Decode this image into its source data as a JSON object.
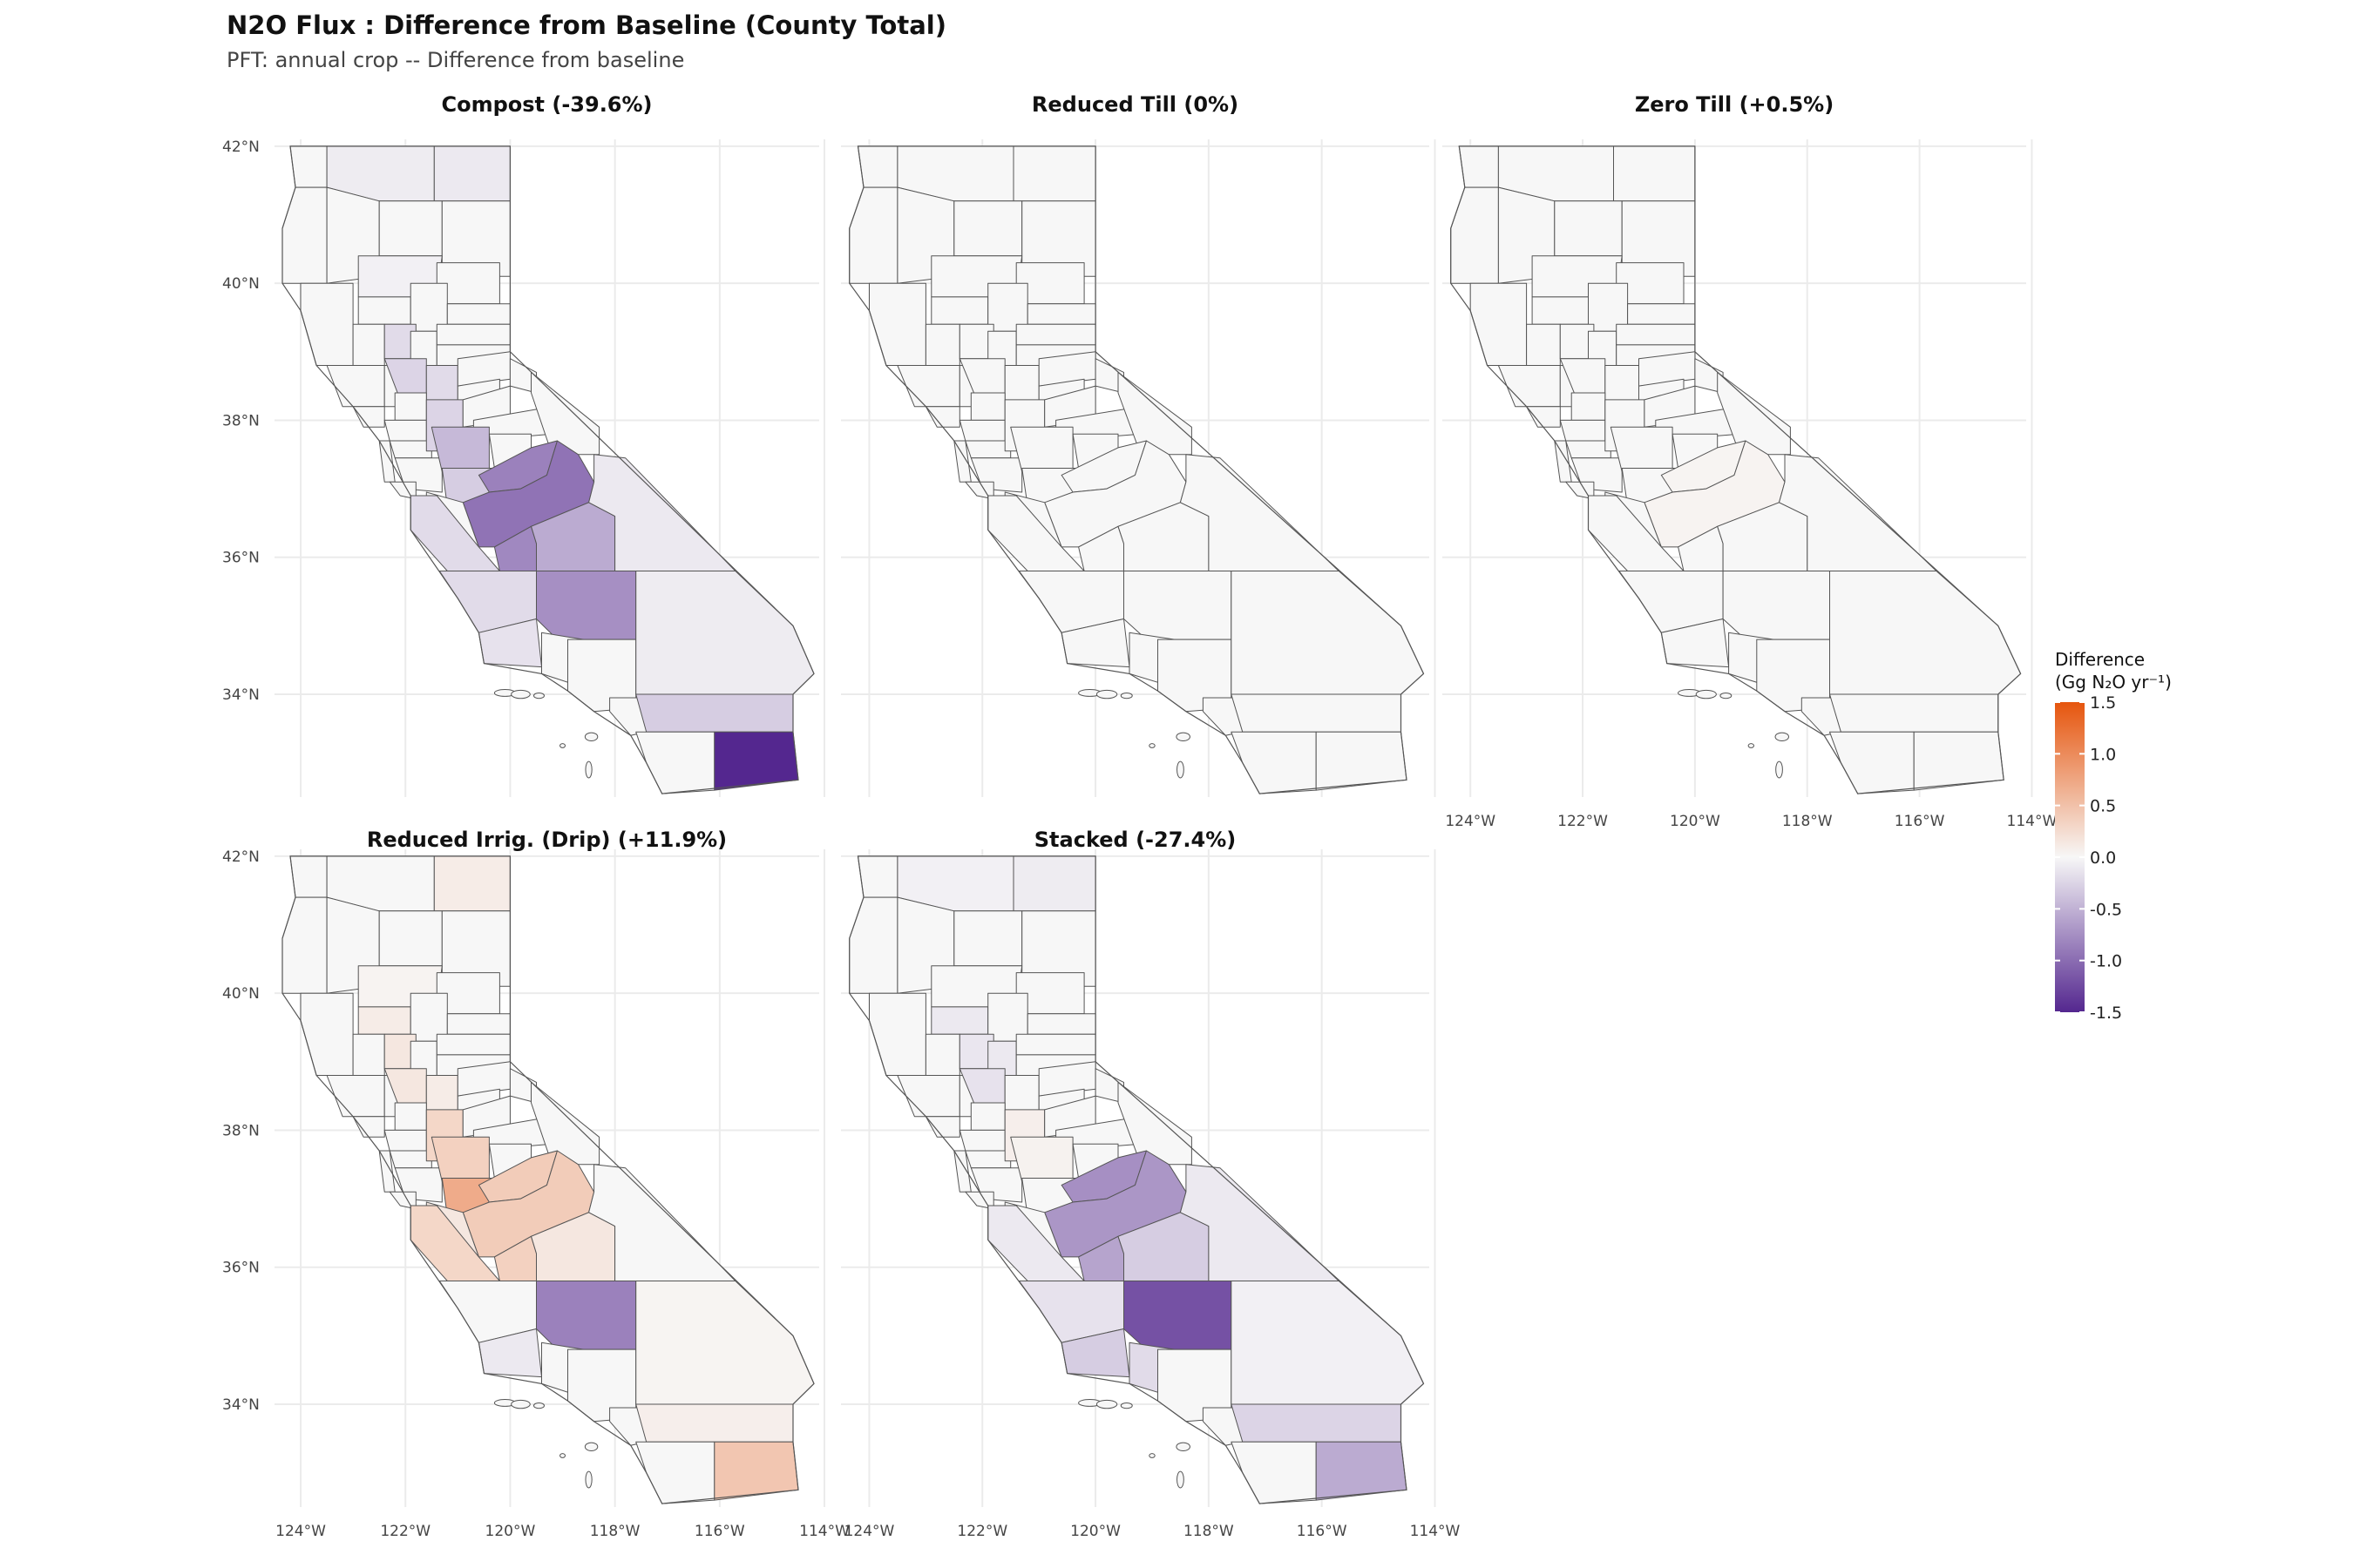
{
  "title": "N2O Flux : Difference from Baseline (County Total)",
  "subtitle": "PFT: annual crop  -- Difference from baseline",
  "chart_data": {
    "type": "choropleth-map",
    "region": "California counties",
    "x_ticks": [
      "124°W",
      "122°W",
      "120°W",
      "118°W",
      "116°W",
      "114°W"
    ],
    "x_tick_values": [
      -124,
      -122,
      -120,
      -118,
      -116,
      -114
    ],
    "y_ticks": [
      "42°N",
      "40°N",
      "38°N",
      "36°N",
      "34°N"
    ],
    "y_tick_values": [
      42,
      40,
      38,
      36,
      34
    ],
    "xlim": [
      -124.5,
      -114.1
    ],
    "ylim": [
      32.5,
      42.1
    ],
    "grid": true,
    "legend": {
      "title_line1": "Difference",
      "title_line2": "(Gg N₂O yr⁻¹)",
      "ticks": [
        "1.5",
        "1.0",
        "0.5",
        "0.0",
        "-0.5",
        "-1.0",
        "-1.5"
      ],
      "tick_values": [
        1.5,
        1.0,
        0.5,
        0.0,
        -0.5,
        -1.0,
        -1.5
      ],
      "range": [
        -1.5,
        1.5
      ],
      "colors": {
        "high": "#e6550d",
        "mid": "#f7f7f7",
        "low": "#54278f"
      },
      "position": "right"
    },
    "panels": [
      {
        "title": "Compost (-39.6%)",
        "values": {
          "siskiyou": -0.08,
          "modoc": -0.1,
          "tehama": -0.05,
          "yolo": -0.25,
          "colusa": -0.2,
          "sacramento": -0.2,
          "sanjoaquin": -0.25,
          "stanislaus": -0.45,
          "merced": -0.3,
          "madera": -0.85,
          "fresno": -0.95,
          "kings": -0.8,
          "tulare": -0.55,
          "kern": -0.75,
          "monterey": -0.2,
          "sanluisobispo": -0.2,
          "santabarbara": -0.15,
          "riverside": -0.3,
          "imperial": -1.5,
          "sanbernardino": -0.08,
          "inyo": -0.1
        }
      },
      {
        "title": "Reduced Till (0%)",
        "values": {}
      },
      {
        "title": "Zero Till (+0.5%)",
        "values": {
          "fresno": 0.04,
          "madera": 0.03
        }
      },
      {
        "title": "Reduced Irrig. (Drip) (+11.9%)",
        "values": {
          "modoc": 0.1,
          "tehama": 0.04,
          "glenn": 0.1,
          "colusa": 0.15,
          "yolo": 0.15,
          "sacramento": 0.1,
          "sanjoaquin": 0.3,
          "stanislaus": 0.35,
          "merced": 0.7,
          "madera": 0.4,
          "fresno": 0.4,
          "kings": 0.35,
          "tulare": 0.15,
          "kern": -0.85,
          "monterey": 0.3,
          "sanbenito": 0.15,
          "santabarbara": -0.1,
          "riverside": 0.08,
          "imperial": 0.45,
          "sanbernardino": 0.03
        }
      },
      {
        "title": "Stacked (-27.4%)",
        "values": {
          "siskiyou": -0.05,
          "modoc": -0.08,
          "colusa": -0.12,
          "yolo": -0.15,
          "glenn": -0.1,
          "sutter": -0.1,
          "sanjoaquin": 0.08,
          "stanislaus": 0.05,
          "madera": -0.75,
          "fresno": -0.7,
          "kings": -0.6,
          "tulare": -0.3,
          "kern": -1.2,
          "monterey": -0.1,
          "sanluisobispo": -0.15,
          "santabarbara": -0.3,
          "ventura": -0.2,
          "riverside": -0.25,
          "imperial": -0.55,
          "sanbernardino": -0.05,
          "inyo": -0.1
        }
      }
    ]
  }
}
